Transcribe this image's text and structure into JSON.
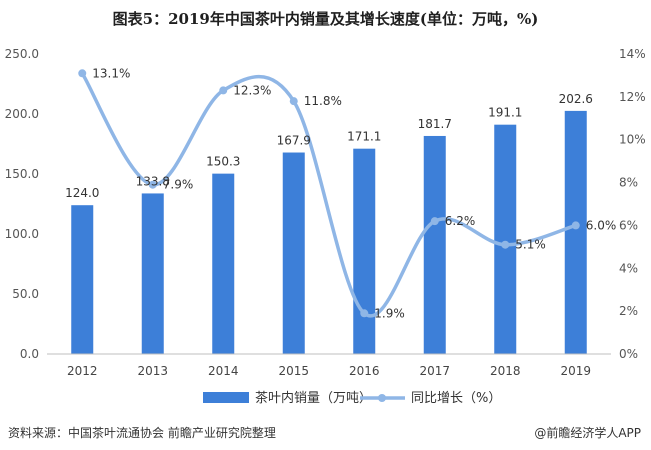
{
  "title": "图表5：2019年中国茶叶内销量及其增长速度(单位：万吨，%)",
  "source": "资料来源：中国茶叶流通协会 前瞻产业研究院整理",
  "brand": "@前瞻经济学人APP",
  "colors": {
    "bar": "#3d7fd8",
    "line": "#8fb6e6"
  },
  "chart_data": {
    "type": "bar",
    "categories": [
      "2012",
      "2013",
      "2014",
      "2015",
      "2016",
      "2017",
      "2018",
      "2019"
    ],
    "series": [
      {
        "name": "茶叶内销量（万吨）",
        "type": "bar",
        "axis": "left",
        "values": [
          124.0,
          133.8,
          150.3,
          167.9,
          171.1,
          181.7,
          191.1,
          202.6
        ],
        "labels": [
          "124.0",
          "133.8",
          "150.3",
          "167.9",
          "171.1",
          "181.7",
          "191.1",
          "202.6"
        ]
      },
      {
        "name": "同比增长（%）",
        "type": "line",
        "axis": "right",
        "smooth": true,
        "values": [
          13.1,
          7.9,
          12.3,
          11.8,
          1.9,
          6.2,
          5.1,
          6.0
        ],
        "labels": [
          "13.1%",
          "7.9%",
          "12.3%",
          "11.8%",
          "1.9%",
          "6.2%",
          "5.1%",
          "6.0%"
        ]
      }
    ],
    "y_left": {
      "min": 0,
      "max": 250,
      "ticks": [
        "0.0",
        "50.0",
        "100.0",
        "150.0",
        "200.0",
        "250.0"
      ]
    },
    "y_right": {
      "min": 0,
      "max": 14,
      "ticks": [
        "0%",
        "2%",
        "4%",
        "6%",
        "8%",
        "10%",
        "12%",
        "14%"
      ]
    },
    "legend_position": "bottom",
    "grid": false
  }
}
